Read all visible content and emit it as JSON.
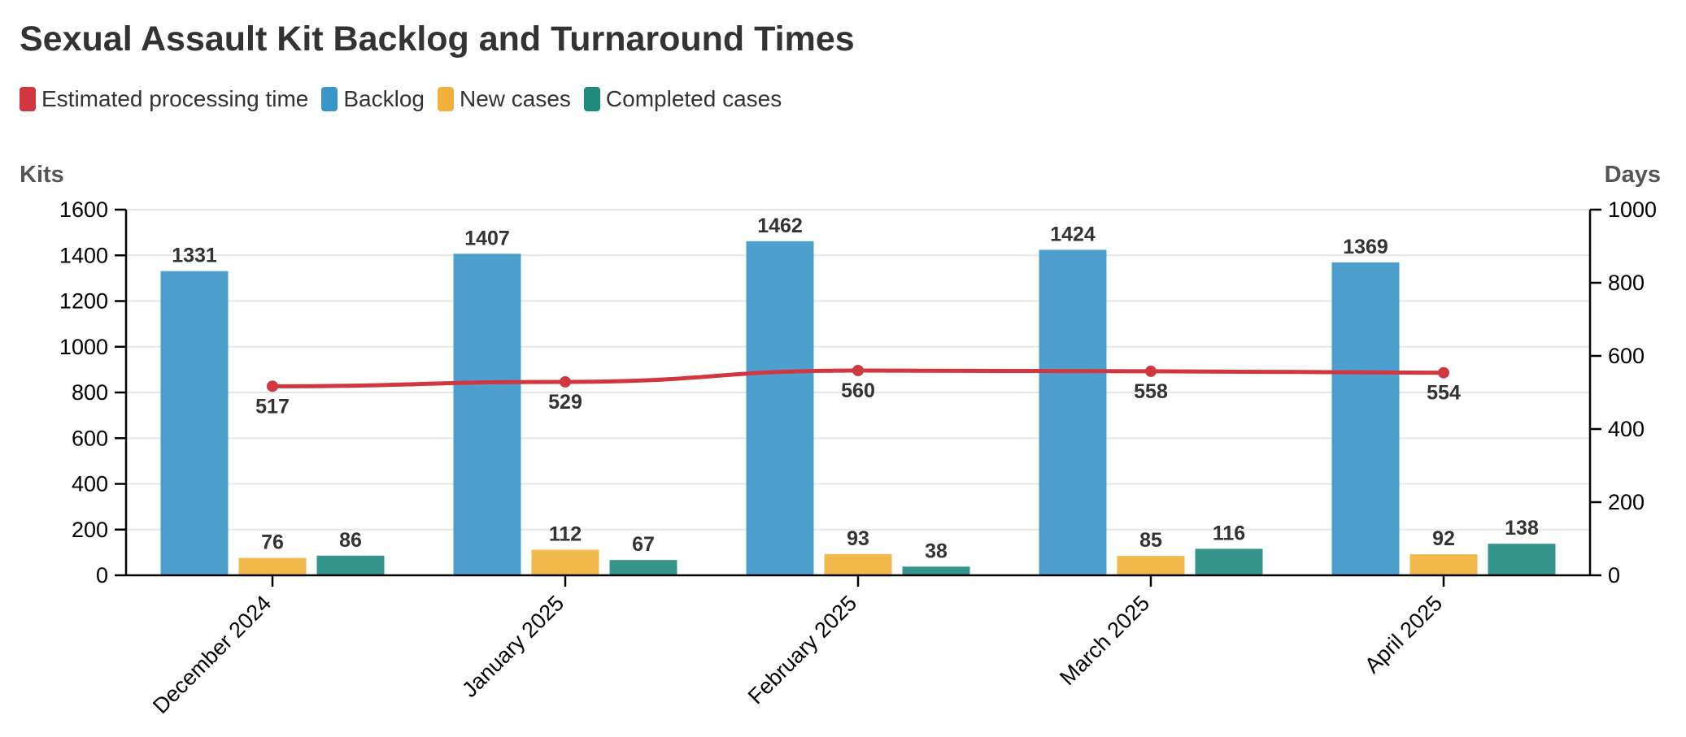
{
  "chart_data": {
    "type": "bar",
    "title": "Sexual Assault Kit Backlog and Turnaround Times",
    "categories": [
      "December 2024",
      "January 2025",
      "February 2025",
      "March 2025",
      "April 2025"
    ],
    "y_left": {
      "label": "Kits",
      "range": [
        0,
        1600
      ],
      "ticks": [
        "0",
        "200",
        "400",
        "600",
        "800",
        "1000",
        "1200",
        "1400",
        "1600"
      ]
    },
    "y_right": {
      "label": "Days",
      "range": [
        0,
        1000
      ],
      "ticks": [
        "0",
        "200",
        "400",
        "600",
        "800",
        "1000"
      ]
    },
    "grid": true,
    "legend": {
      "position": "top-left"
    },
    "series": [
      {
        "name": "Estimated processing time",
        "type": "line",
        "axis": "right",
        "color": "#d1373f",
        "values": [
          517,
          529,
          560,
          558,
          554
        ]
      },
      {
        "name": "Backlog",
        "type": "bar",
        "axis": "left",
        "color": "#3a96c9",
        "values": [
          1331,
          1407,
          1462,
          1424,
          1369
        ]
      },
      {
        "name": "New cases",
        "type": "bar",
        "axis": "left",
        "color": "#f0b23a",
        "values": [
          76,
          112,
          93,
          85,
          92
        ]
      },
      {
        "name": "Completed cases",
        "type": "bar",
        "axis": "left",
        "color": "#1f8a80",
        "values": [
          86,
          67,
          38,
          116,
          138
        ]
      }
    ]
  }
}
